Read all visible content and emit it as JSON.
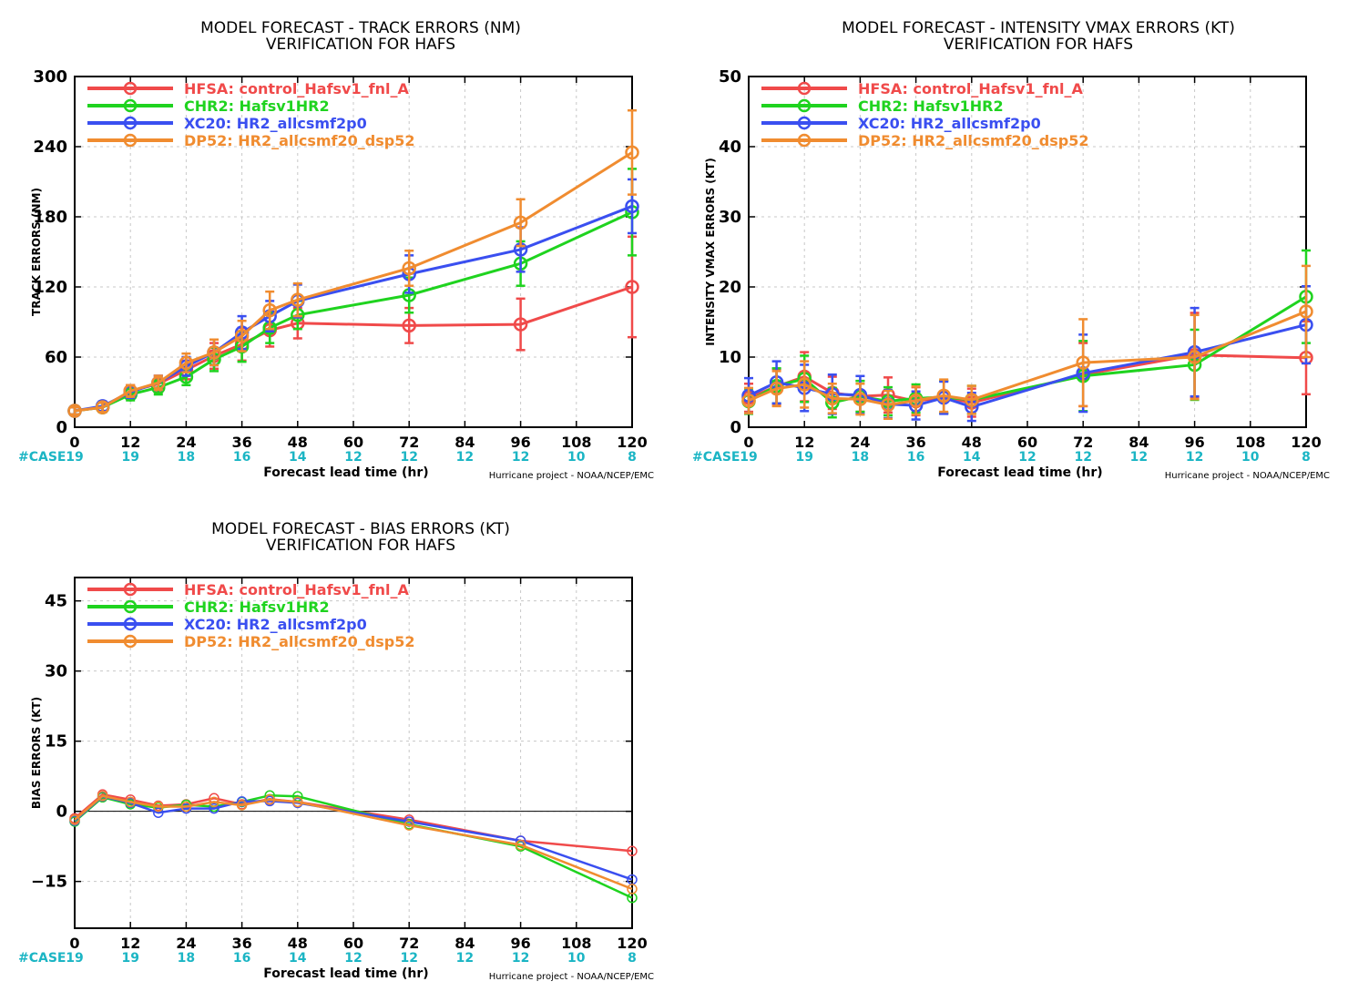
{
  "colors": {
    "HFSA": "#f04a4a",
    "CHR2": "#1fd31f",
    "XC20": "#3a4ff0",
    "DP52": "#f08c30",
    "case_label": "#1bb5c4",
    "grid": "#c8c8c8"
  },
  "shared": {
    "xlabel": "Forecast lead time (hr)",
    "credit": "Hurricane project - NOAA/NCEP/EMC",
    "case_label": "#CASE",
    "x_ticks": [
      0,
      12,
      24,
      36,
      48,
      60,
      72,
      84,
      96,
      108,
      120
    ],
    "case_counts": [
      19,
      19,
      18,
      16,
      14,
      12,
      12,
      12,
      12,
      10,
      8
    ],
    "legend": [
      {
        "id": "HFSA",
        "label": "HFSA: control_Hafsv1_fnl_A"
      },
      {
        "id": "CHR2",
        "label": "CHR2: Hafsv1HR2"
      },
      {
        "id": "XC20",
        "label": "XC20: HR2_allcsmf2p0"
      },
      {
        "id": "DP52",
        "label": "DP52: HR2_allcsmf20_dsp52"
      }
    ]
  },
  "chart_data": [
    {
      "type": "line",
      "title": "MODEL FORECAST - TRACK ERRORS (NM)",
      "subtitle": "VERIFICATION FOR HAFS",
      "xlabel": "Forecast lead time (hr)",
      "ylabel": "TRACK ERRORS (NM)",
      "xlim": [
        0,
        120
      ],
      "ylim": [
        0,
        300
      ],
      "y_ticks": [
        0,
        60,
        120,
        180,
        240,
        300
      ],
      "error_bars": true,
      "zero_line": false,
      "x_ticks_shown": [
        0,
        12,
        24,
        36,
        48,
        60,
        72,
        84,
        96,
        108,
        120
      ],
      "x": [
        0,
        6,
        12,
        18,
        24,
        30,
        36,
        42,
        48,
        72,
        96,
        120
      ],
      "series": [
        {
          "id": "HFSA",
          "name": "HFSA: control_Hafsv1_fnl_A",
          "values": [
            14,
            17,
            31,
            37,
            49,
            61,
            71,
            83,
            89,
            87,
            88,
            120
          ],
          "err": [
            3,
            4,
            5,
            7,
            8,
            11,
            14,
            14,
            13,
            15,
            22,
            43
          ]
        },
        {
          "id": "CHR2",
          "name": "CHR2: Hafsv1HR2",
          "values": [
            14,
            17,
            28,
            34,
            43,
            58,
            69,
            85,
            96,
            113,
            140,
            184
          ],
          "err": [
            3,
            4,
            5,
            6,
            7,
            10,
            13,
            13,
            12,
            15,
            19,
            37
          ]
        },
        {
          "id": "XC20",
          "name": "XC20: HR2_allcsmf2p0",
          "values": [
            14,
            18,
            30,
            38,
            52,
            64,
            81,
            95,
            108,
            131,
            152,
            189
          ],
          "err": [
            3,
            4,
            5,
            6,
            8,
            11,
            14,
            13,
            14,
            16,
            19,
            23
          ]
        },
        {
          "id": "DP52",
          "name": "DP52: HR2_allcsmf20_dsp52",
          "values": [
            14,
            17,
            31,
            38,
            55,
            64,
            78,
            100,
            109,
            136,
            175,
            235
          ],
          "err": [
            3,
            4,
            5,
            6,
            8,
            11,
            13,
            16,
            14,
            15,
            20,
            36
          ]
        }
      ]
    },
    {
      "type": "line",
      "title": "MODEL FORECAST - INTENSITY VMAX ERRORS (KT)",
      "subtitle": "VERIFICATION FOR HAFS",
      "xlabel": "Forecast lead time (hr)",
      "ylabel": "INTENSITY VMAX ERRORS (KT)",
      "xlim": [
        0,
        120
      ],
      "ylim": [
        0,
        50
      ],
      "y_ticks": [
        0,
        10,
        20,
        30,
        40,
        50
      ],
      "error_bars": true,
      "zero_line": false,
      "x_ticks_shown": [
        0,
        12,
        24,
        36,
        48,
        60,
        72,
        84,
        96,
        108,
        120
      ],
      "x": [
        0,
        6,
        12,
        18,
        24,
        30,
        36,
        42,
        48,
        72,
        96,
        120
      ],
      "series": [
        {
          "id": "HFSA",
          "name": "HFSA: control_Hafsv1_fnl_A",
          "values": [
            4.2,
            5.8,
            7.2,
            4.9,
            4.4,
            4.6,
            3.7,
            4.3,
            3.5,
            7.5,
            10.3,
            9.9
          ],
          "err": [
            2,
            2.5,
            3.5,
            2.3,
            2.2,
            2.5,
            2,
            2.3,
            2,
            4.5,
            6,
            5.2
          ]
        },
        {
          "id": "CHR2",
          "name": "CHR2: Hafsv1HR2",
          "values": [
            3.7,
            5.9,
            6.9,
            3.5,
            4.4,
            3.7,
            4.1,
            4.3,
            3.9,
            7.3,
            8.9,
            18.6
          ],
          "err": [
            1.8,
            2.5,
            3.3,
            2.1,
            2.2,
            2,
            2,
            2.3,
            2,
            5,
            5,
            6.6
          ]
        },
        {
          "id": "XC20",
          "name": "XC20: HR2_allcsmf2p0",
          "values": [
            4.5,
            6.4,
            5.6,
            4.7,
            4.6,
            3.3,
            3.1,
            4.2,
            2.9,
            7.7,
            10.7,
            14.6
          ],
          "err": [
            2.5,
            3,
            3.3,
            2.8,
            2.7,
            2,
            2,
            2.3,
            2,
            5.5,
            6.3,
            5.5
          ]
        },
        {
          "id": "DP52",
          "name": "DP52: HR2_allcsmf20_dsp52",
          "values": [
            3.8,
            5.5,
            6.1,
            4.1,
            4.0,
            3.2,
            3.8,
            4.5,
            3.9,
            9.2,
            10.0,
            16.5
          ],
          "err": [
            1.8,
            2.5,
            3.3,
            2.1,
            2.2,
            2,
            2,
            2.3,
            2,
            6.2,
            6,
            6.5
          ]
        }
      ]
    },
    {
      "type": "line",
      "title": "MODEL FORECAST - BIAS ERRORS (KT)",
      "subtitle": "VERIFICATION FOR HAFS",
      "xlabel": "Forecast lead time (hr)",
      "ylabel": "BIAS ERRORS (KT)",
      "xlim": [
        0,
        120
      ],
      "ylim": [
        -25,
        50
      ],
      "y_ticks": [
        -15,
        0,
        15,
        30,
        45
      ],
      "error_bars": false,
      "zero_line": true,
      "x_ticks_shown": [
        0,
        12,
        24,
        36,
        48,
        60,
        72,
        84,
        96,
        108,
        120
      ],
      "x": [
        0,
        6,
        12,
        18,
        24,
        30,
        36,
        42,
        48,
        72,
        96,
        120
      ],
      "series": [
        {
          "id": "HFSA",
          "name": "HFSA: control_Hafsv1_fnl_A",
          "values": [
            -1.5,
            3.6,
            2.5,
            1.2,
            1.5,
            2.8,
            1.5,
            2.6,
            2.0,
            -1.8,
            -6.3,
            -8.5
          ]
        },
        {
          "id": "CHR2",
          "name": "CHR2: Hafsv1HR2",
          "values": [
            -2.2,
            3.0,
            1.5,
            0.8,
            1.4,
            1.0,
            2.0,
            3.4,
            3.2,
            -2.8,
            -7.5,
            -18.5
          ]
        },
        {
          "id": "XC20",
          "name": "XC20: HR2_allcsmf2p0",
          "values": [
            -2.0,
            3.2,
            1.8,
            -0.3,
            0.6,
            0.6,
            2.1,
            2.2,
            1.8,
            -2.2,
            -6.3,
            -14.6
          ]
        },
        {
          "id": "DP52",
          "name": "DP52: HR2_allcsmf20_dsp52",
          "values": [
            -1.8,
            3.3,
            2.0,
            1.0,
            1.0,
            2.0,
            1.3,
            2.5,
            2.0,
            -3.0,
            -7.2,
            -16.6
          ]
        }
      ]
    }
  ]
}
